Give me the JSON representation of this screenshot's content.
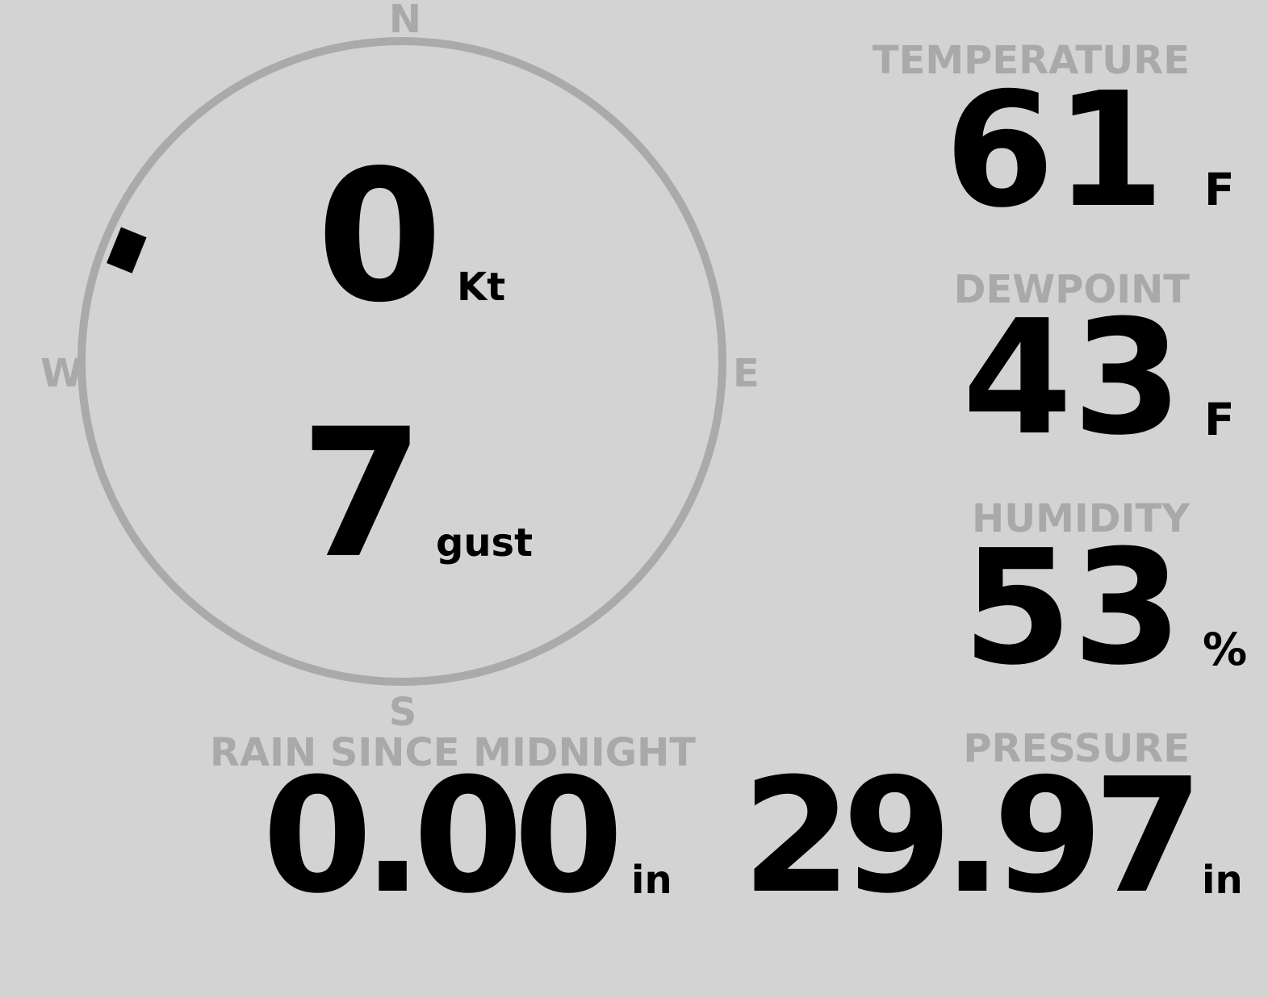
{
  "colors": {
    "background": "#d3d3d3",
    "label": "#a9a9a9",
    "value": "#000000",
    "compass_ring": "#aaaaaa"
  },
  "wind": {
    "compass": {
      "n": "N",
      "e": "E",
      "s": "S",
      "w": "W"
    },
    "direction_deg": 292,
    "speed": "0",
    "speed_unit": "Kt",
    "gust": "7",
    "gust_unit": "gust"
  },
  "rain": {
    "label": "RAIN SINCE MIDNIGHT",
    "value": "0.00",
    "unit": "in"
  },
  "temperature": {
    "label": "TEMPERATURE",
    "value": "61",
    "unit": "F"
  },
  "dewpoint": {
    "label": "DEWPOINT",
    "value": "43",
    "unit": "F"
  },
  "humidity": {
    "label": "HUMIDITY",
    "value": "53",
    "unit": "%"
  },
  "pressure": {
    "label": "PRESSURE",
    "value": "29.97",
    "unit": "in"
  }
}
